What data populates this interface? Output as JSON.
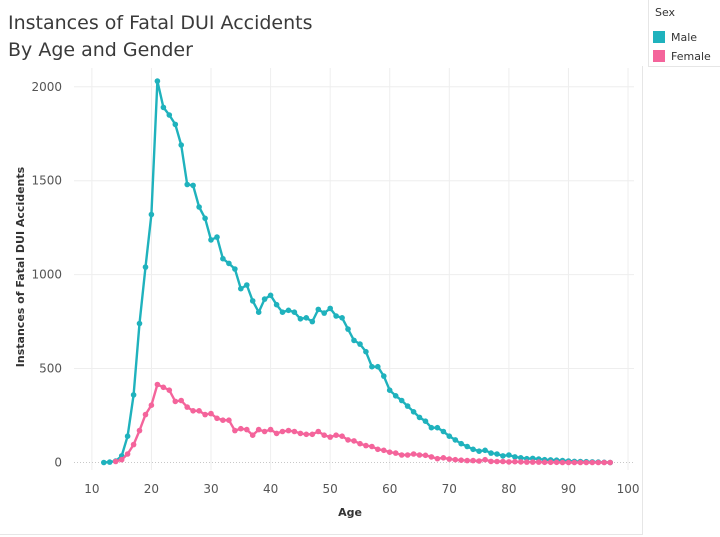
{
  "title_line1": "Instances of Fatal DUI Accidents",
  "title_line2": "By Age and Gender",
  "legend": {
    "title": "Sex",
    "items": [
      {
        "label": "Male",
        "color": "#1fb2bd"
      },
      {
        "label": "Female",
        "color": "#f4649b"
      }
    ]
  },
  "chart_data": {
    "type": "line",
    "xlabel": "Age",
    "ylabel": "Instances of Fatal DUI Accidents",
    "xlim": [
      7,
      101
    ],
    "ylim": [
      -40,
      2100
    ],
    "xticks": [
      10,
      20,
      30,
      40,
      50,
      60,
      70,
      80,
      90,
      100
    ],
    "yticks": [
      0,
      500,
      1000,
      1500,
      2000
    ],
    "grid": true,
    "legend_position": "top-right",
    "series": [
      {
        "name": "Male",
        "color": "#1fb2bd",
        "x": [
          12,
          13,
          14,
          15,
          16,
          17,
          18,
          19,
          20,
          21,
          22,
          23,
          24,
          25,
          26,
          27,
          28,
          29,
          30,
          31,
          32,
          33,
          34,
          35,
          36,
          37,
          38,
          39,
          40,
          41,
          42,
          43,
          44,
          45,
          46,
          47,
          48,
          49,
          50,
          51,
          52,
          53,
          54,
          55,
          56,
          57,
          58,
          59,
          60,
          61,
          62,
          63,
          64,
          65,
          66,
          67,
          68,
          69,
          70,
          71,
          72,
          73,
          74,
          75,
          76,
          77,
          78,
          79,
          80,
          81,
          82,
          83,
          84,
          85,
          86,
          87,
          88,
          89,
          90,
          91,
          92,
          93,
          94,
          95,
          96,
          97
        ],
        "y": [
          0,
          2,
          8,
          35,
          140,
          360,
          740,
          1040,
          1320,
          2030,
          1890,
          1850,
          1800,
          1690,
          1480,
          1475,
          1360,
          1300,
          1185,
          1200,
          1085,
          1060,
          1030,
          925,
          945,
          860,
          800,
          870,
          890,
          840,
          800,
          810,
          800,
          765,
          770,
          750,
          815,
          795,
          820,
          780,
          770,
          710,
          650,
          630,
          590,
          510,
          510,
          460,
          385,
          355,
          330,
          300,
          270,
          240,
          220,
          185,
          185,
          165,
          140,
          120,
          100,
          85,
          70,
          60,
          65,
          50,
          45,
          35,
          40,
          30,
          25,
          20,
          22,
          18,
          15,
          14,
          12,
          10,
          8,
          6,
          5,
          4,
          3,
          2,
          1,
          0
        ]
      },
      {
        "name": "Female",
        "color": "#f4649b",
        "x": [
          14,
          15,
          16,
          17,
          18,
          19,
          20,
          21,
          22,
          23,
          24,
          25,
          26,
          27,
          28,
          29,
          30,
          31,
          32,
          33,
          34,
          35,
          36,
          37,
          38,
          39,
          40,
          41,
          42,
          43,
          44,
          45,
          46,
          47,
          48,
          49,
          50,
          51,
          52,
          53,
          54,
          55,
          56,
          57,
          58,
          59,
          60,
          61,
          62,
          63,
          64,
          65,
          66,
          67,
          68,
          69,
          70,
          71,
          72,
          73,
          74,
          75,
          76,
          77,
          78,
          79,
          80,
          81,
          82,
          83,
          84,
          85,
          86,
          87,
          88,
          89,
          90,
          91,
          92,
          93,
          94,
          95,
          96,
          97
        ],
        "y": [
          5,
          15,
          45,
          95,
          170,
          255,
          305,
          415,
          400,
          385,
          325,
          330,
          295,
          275,
          275,
          255,
          260,
          235,
          225,
          225,
          170,
          180,
          175,
          145,
          175,
          165,
          175,
          155,
          165,
          170,
          165,
          155,
          150,
          150,
          165,
          145,
          135,
          145,
          140,
          120,
          115,
          100,
          90,
          85,
          70,
          65,
          55,
          50,
          40,
          40,
          45,
          40,
          38,
          30,
          20,
          25,
          18,
          15,
          12,
          10,
          10,
          8,
          15,
          6,
          5,
          5,
          3,
          4,
          3,
          2,
          2,
          2,
          1,
          1,
          1,
          0,
          0,
          0,
          0,
          0,
          0,
          0,
          0,
          0
        ]
      }
    ]
  }
}
